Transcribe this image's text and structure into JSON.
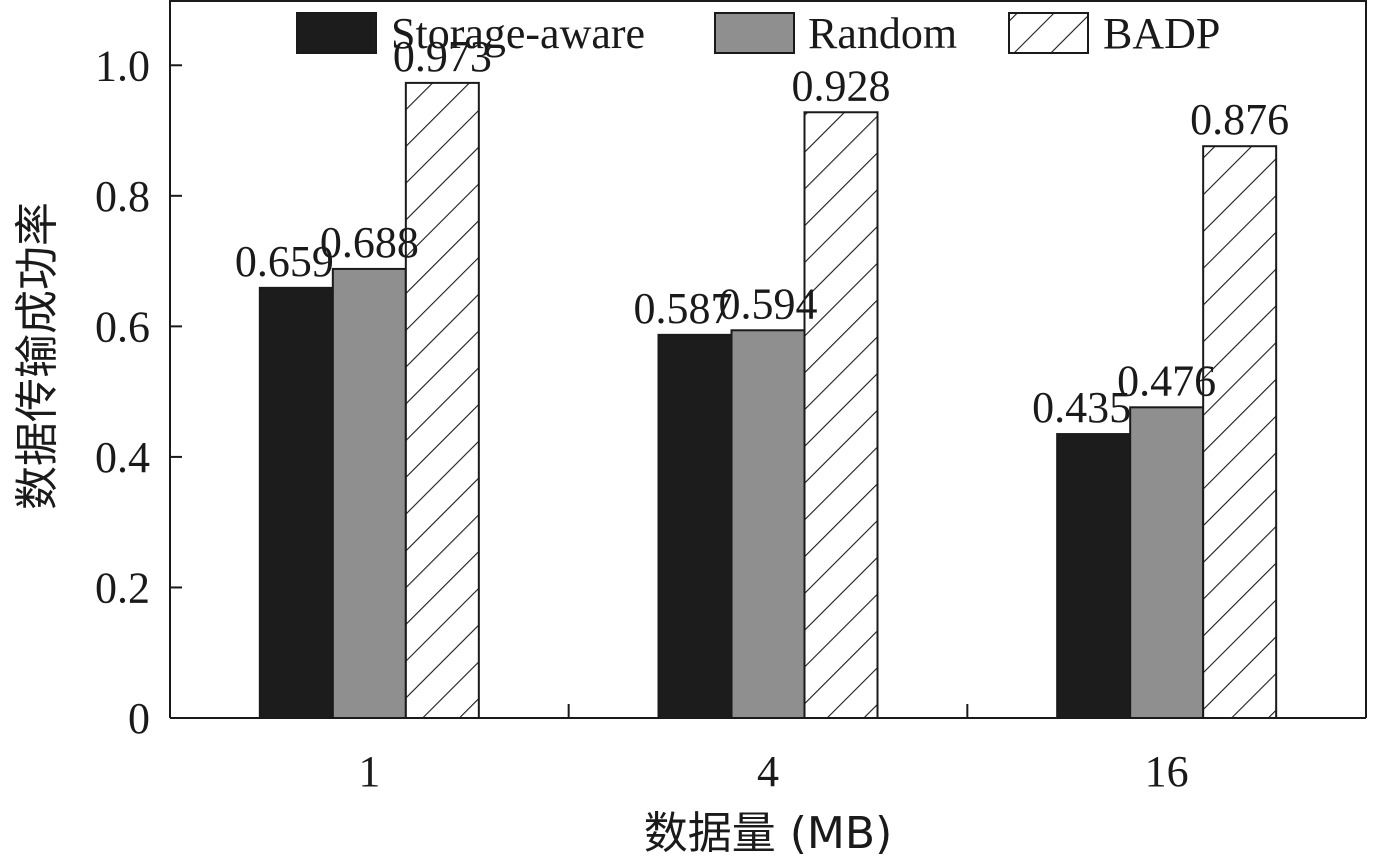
{
  "chart_data": {
    "type": "bar",
    "categories": [
      "1",
      "4",
      "16"
    ],
    "series": [
      {
        "name": "Storage-aware",
        "values": [
          0.659,
          0.587,
          0.435
        ],
        "color": "#1c1c1c",
        "pattern": "solid"
      },
      {
        "name": "Random",
        "values": [
          0.688,
          0.594,
          0.476
        ],
        "color": "#8f8f8f",
        "pattern": "solid"
      },
      {
        "name": "BADP",
        "values": [
          0.973,
          0.928,
          0.876
        ],
        "color": "#ffffff",
        "pattern": "diagonal-hatch"
      }
    ],
    "data_labels": [
      [
        "0.659",
        "0.587",
        "0.435"
      ],
      [
        "0.688",
        "0.594",
        "0.476"
      ],
      [
        "0.973",
        "0.928",
        "0.876"
      ]
    ],
    "xlabel": "数据量 (MB)",
    "ylabel": "数据传输成功率",
    "ylim": [
      0,
      1.1
    ],
    "yticks": [
      0,
      0.2,
      0.4,
      0.6,
      0.8,
      1.0
    ],
    "ytick_labels": [
      "0",
      "0.2",
      "0.4",
      "0.6",
      "0.8",
      "1.0"
    ],
    "legend_position": "top-center",
    "grid": false
  }
}
